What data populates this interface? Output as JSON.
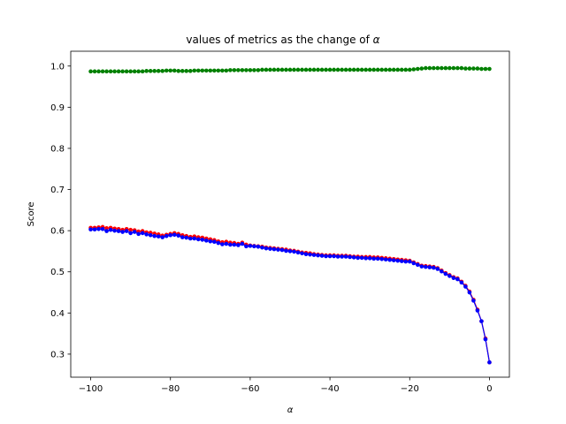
{
  "chart_data": {
    "type": "line",
    "title_prefix": "values of metrics as the change of ",
    "title_symbol": "α",
    "xlabel": "α",
    "ylabel": "Score",
    "xlim": [
      -105,
      5
    ],
    "ylim": [
      0.244,
      1.036
    ],
    "xticks": [
      -100,
      -80,
      -60,
      -40,
      -20,
      0
    ],
    "xtick_labels": [
      "−100",
      "−80",
      "−60",
      "−40",
      "−20",
      "0"
    ],
    "yticks": [
      0.3,
      0.4,
      0.5,
      0.6,
      0.7,
      0.8,
      0.9,
      1.0
    ],
    "ytick_labels": [
      "0.3",
      "0.4",
      "0.5",
      "0.6",
      "0.7",
      "0.8",
      "0.9",
      "1.0"
    ],
    "grid": false,
    "x": [
      -100,
      -99,
      -98,
      -97,
      -96,
      -95,
      -94,
      -93,
      -92,
      -91,
      -90,
      -89,
      -88,
      -87,
      -86,
      -85,
      -84,
      -83,
      -82,
      -81,
      -80,
      -79,
      -78,
      -77,
      -76,
      -75,
      -74,
      -73,
      -72,
      -71,
      -70,
      -69,
      -68,
      -67,
      -66,
      -65,
      -64,
      -63,
      -62,
      -61,
      -60,
      -59,
      -58,
      -57,
      -56,
      -55,
      -54,
      -53,
      -52,
      -51,
      -50,
      -49,
      -48,
      -47,
      -46,
      -45,
      -44,
      -43,
      -42,
      -41,
      -40,
      -39,
      -38,
      -37,
      -36,
      -35,
      -34,
      -33,
      -32,
      -31,
      -30,
      -29,
      -28,
      -27,
      -26,
      -25,
      -24,
      -23,
      -22,
      -21,
      -20,
      -19,
      -18,
      -17,
      -16,
      -15,
      -14,
      -13,
      -12,
      -11,
      -10,
      -9,
      -8,
      -7,
      -6,
      -5,
      -4,
      -3,
      -2,
      -1,
      0
    ],
    "series": [
      {
        "color": "#008000",
        "values": [
          0.987,
          0.987,
          0.987,
          0.987,
          0.987,
          0.987,
          0.987,
          0.987,
          0.987,
          0.987,
          0.987,
          0.987,
          0.987,
          0.987,
          0.988,
          0.988,
          0.988,
          0.988,
          0.988,
          0.989,
          0.989,
          0.989,
          0.988,
          0.988,
          0.988,
          0.988,
          0.989,
          0.989,
          0.989,
          0.989,
          0.989,
          0.989,
          0.989,
          0.989,
          0.989,
          0.99,
          0.99,
          0.99,
          0.99,
          0.99,
          0.99,
          0.99,
          0.99,
          0.991,
          0.991,
          0.991,
          0.991,
          0.991,
          0.991,
          0.991,
          0.991,
          0.991,
          0.991,
          0.991,
          0.991,
          0.991,
          0.991,
          0.991,
          0.991,
          0.991,
          0.991,
          0.991,
          0.991,
          0.991,
          0.991,
          0.991,
          0.991,
          0.991,
          0.991,
          0.991,
          0.991,
          0.991,
          0.991,
          0.991,
          0.991,
          0.991,
          0.991,
          0.991,
          0.991,
          0.991,
          0.991,
          0.992,
          0.993,
          0.994,
          0.995,
          0.995,
          0.995,
          0.995,
          0.995,
          0.995,
          0.995,
          0.995,
          0.995,
          0.995,
          0.994,
          0.994,
          0.994,
          0.994,
          0.993,
          0.993,
          0.993
        ]
      },
      {
        "color": "#ff0000",
        "values": [
          0.607,
          0.607,
          0.608,
          0.609,
          0.606,
          0.607,
          0.605,
          0.604,
          0.602,
          0.604,
          0.602,
          0.601,
          0.598,
          0.599,
          0.596,
          0.595,
          0.593,
          0.591,
          0.588,
          0.59,
          0.592,
          0.594,
          0.592,
          0.589,
          0.587,
          0.585,
          0.586,
          0.584,
          0.583,
          0.581,
          0.579,
          0.577,
          0.574,
          0.572,
          0.573,
          0.571,
          0.57,
          0.568,
          0.571,
          0.566,
          0.564,
          0.563,
          0.562,
          0.561,
          0.559,
          0.558,
          0.557,
          0.556,
          0.555,
          0.554,
          0.552,
          0.551,
          0.549,
          0.547,
          0.546,
          0.545,
          0.543,
          0.542,
          0.541,
          0.54,
          0.54,
          0.54,
          0.539,
          0.539,
          0.539,
          0.538,
          0.537,
          0.537,
          0.536,
          0.536,
          0.536,
          0.535,
          0.535,
          0.534,
          0.533,
          0.532,
          0.531,
          0.53,
          0.529,
          0.528,
          0.527,
          0.523,
          0.519,
          0.515,
          0.514,
          0.513,
          0.512,
          0.509,
          0.503,
          0.497,
          0.492,
          0.487,
          0.484,
          0.476,
          0.466,
          0.452,
          0.432,
          0.408,
          0.38,
          0.338,
          0.28
        ]
      },
      {
        "color": "#0000ff",
        "values": [
          0.603,
          0.603,
          0.604,
          0.604,
          0.599,
          0.602,
          0.6,
          0.599,
          0.597,
          0.599,
          0.594,
          0.597,
          0.592,
          0.594,
          0.591,
          0.589,
          0.587,
          0.586,
          0.584,
          0.587,
          0.589,
          0.59,
          0.588,
          0.584,
          0.583,
          0.581,
          0.581,
          0.579,
          0.578,
          0.576,
          0.574,
          0.573,
          0.57,
          0.567,
          0.568,
          0.566,
          0.566,
          0.565,
          0.568,
          0.562,
          0.563,
          0.562,
          0.561,
          0.559,
          0.557,
          0.556,
          0.555,
          0.554,
          0.553,
          0.551,
          0.55,
          0.549,
          0.547,
          0.545,
          0.543,
          0.542,
          0.541,
          0.54,
          0.539,
          0.538,
          0.538,
          0.538,
          0.537,
          0.537,
          0.537,
          0.536,
          0.535,
          0.534,
          0.534,
          0.533,
          0.533,
          0.532,
          0.532,
          0.531,
          0.53,
          0.529,
          0.528,
          0.527,
          0.526,
          0.525,
          0.525,
          0.521,
          0.517,
          0.513,
          0.512,
          0.511,
          0.51,
          0.507,
          0.501,
          0.495,
          0.49,
          0.485,
          0.482,
          0.474,
          0.464,
          0.45,
          0.43,
          0.406,
          0.38,
          0.336,
          0.28
        ]
      }
    ]
  }
}
